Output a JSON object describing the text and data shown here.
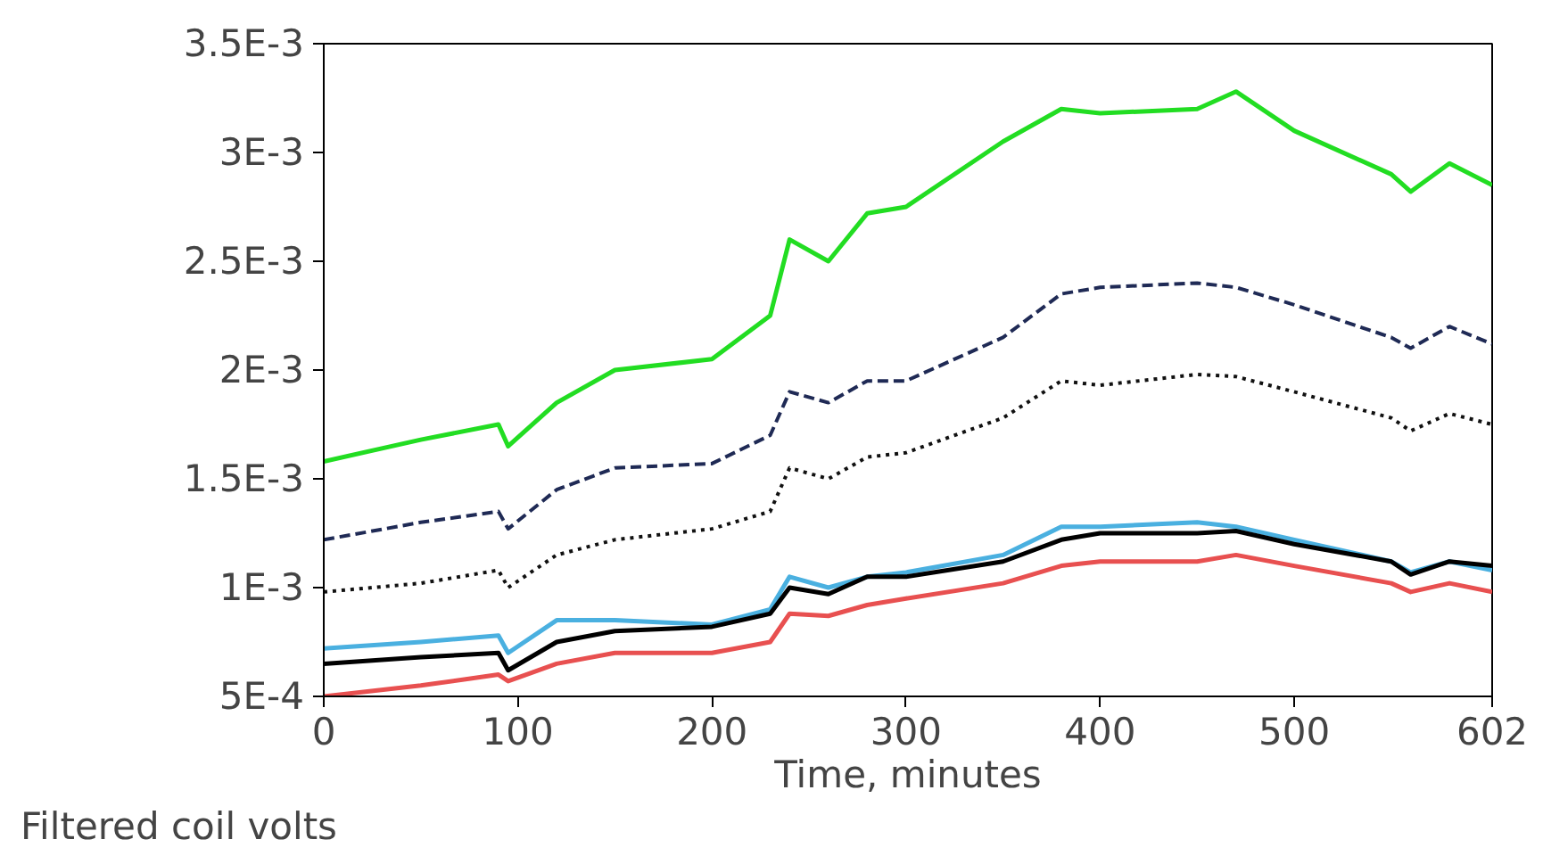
{
  "chart_data": {
    "type": "line",
    "xlabel": "Time, minutes",
    "ylabel": "Filtered coil volts",
    "x": [
      0,
      50,
      90,
      95,
      120,
      150,
      200,
      230,
      240,
      260,
      280,
      300,
      350,
      380,
      400,
      450,
      470,
      500,
      550,
      560,
      580,
      602
    ],
    "xlim": [
      0,
      602
    ],
    "xticks": [
      0,
      100,
      200,
      300,
      400,
      500,
      602
    ],
    "ylim": [
      0.0005,
      0.0035
    ],
    "yticks": [
      {
        "value": 0.0005,
        "label": "5E-4"
      },
      {
        "value": 0.001,
        "label": "1E-3"
      },
      {
        "value": 0.0015,
        "label": "1.5E-3"
      },
      {
        "value": 0.002,
        "label": "2E-3"
      },
      {
        "value": 0.0025,
        "label": "2.5E-3"
      },
      {
        "value": 0.003,
        "label": "3E-3"
      },
      {
        "value": 0.0035,
        "label": "3.5E-3"
      }
    ],
    "grid": false,
    "series": [
      {
        "color": "#22dd22",
        "line_style": "solid",
        "values": [
          0.00158,
          0.00168,
          0.00175,
          0.00165,
          0.00185,
          0.002,
          0.00205,
          0.00225,
          0.0026,
          0.0025,
          0.00272,
          0.00275,
          0.00305,
          0.0032,
          0.00318,
          0.0032,
          0.00328,
          0.0031,
          0.0029,
          0.00282,
          0.00295,
          0.00285
        ]
      },
      {
        "color": "#1f2a55",
        "line_style": "dashed",
        "values": [
          0.00122,
          0.0013,
          0.00135,
          0.00127,
          0.00145,
          0.00155,
          0.00157,
          0.0017,
          0.0019,
          0.00185,
          0.00195,
          0.00195,
          0.00215,
          0.00235,
          0.00238,
          0.0024,
          0.00238,
          0.0023,
          0.00215,
          0.0021,
          0.0022,
          0.00212
        ]
      },
      {
        "color": "#111111",
        "line_style": "dotted",
        "values": [
          0.00098,
          0.00102,
          0.00108,
          0.001,
          0.00115,
          0.00122,
          0.00127,
          0.00135,
          0.00155,
          0.0015,
          0.0016,
          0.00162,
          0.00178,
          0.00195,
          0.00193,
          0.00198,
          0.00197,
          0.0019,
          0.00178,
          0.00172,
          0.0018,
          0.00175
        ]
      },
      {
        "color": "#4ab0e0",
        "line_style": "solid",
        "values": [
          0.00072,
          0.00075,
          0.00078,
          0.0007,
          0.00085,
          0.00085,
          0.00083,
          0.0009,
          0.00105,
          0.001,
          0.00105,
          0.00107,
          0.00115,
          0.00128,
          0.00128,
          0.0013,
          0.00128,
          0.00122,
          0.00112,
          0.00107,
          0.00112,
          0.00108
        ]
      },
      {
        "color": "#e85050",
        "line_style": "solid",
        "values": [
          0.0005,
          0.00055,
          0.0006,
          0.00057,
          0.00065,
          0.0007,
          0.0007,
          0.00075,
          0.00088,
          0.00087,
          0.00092,
          0.00095,
          0.00102,
          0.0011,
          0.00112,
          0.00112,
          0.00115,
          0.0011,
          0.00102,
          0.00098,
          0.00102,
          0.00098
        ]
      },
      {
        "color": "#000000",
        "line_style": "solid",
        "values": [
          0.00065,
          0.00068,
          0.0007,
          0.00062,
          0.00075,
          0.0008,
          0.00082,
          0.00088,
          0.001,
          0.00097,
          0.00105,
          0.00105,
          0.00112,
          0.00122,
          0.00125,
          0.00125,
          0.00126,
          0.0012,
          0.00112,
          0.00106,
          0.00112,
          0.0011
        ]
      }
    ]
  }
}
